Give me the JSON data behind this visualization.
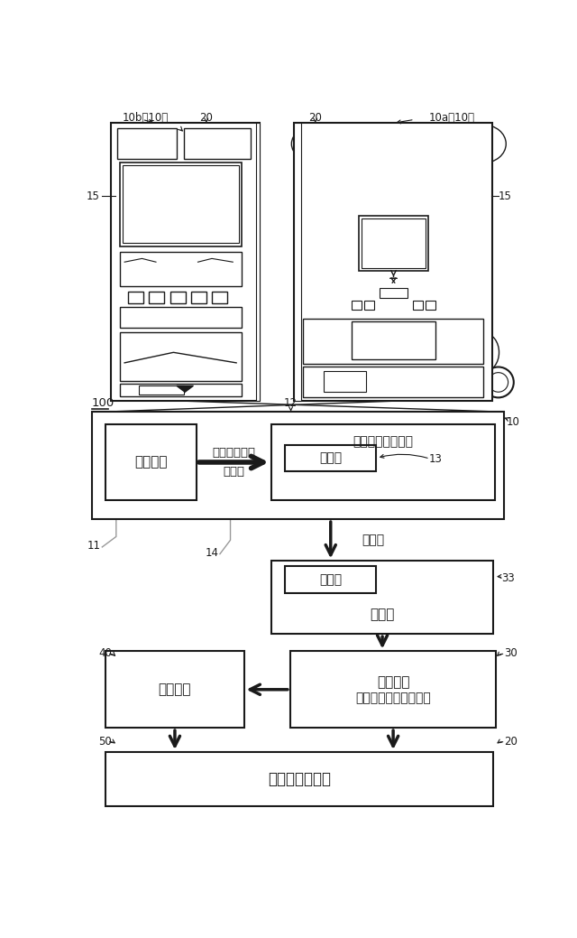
{
  "bg_color": "#ffffff",
  "line_color": "#1a1a1a",
  "gray_line": "#999999",
  "label_fontsize": 8.5,
  "japanese_fontsize": 10,
  "box_texts": {
    "seigyo_kiban": "制御基板",
    "yugiki_setsudan": "遂技機側接続端子",
    "hakkobu": "発光部",
    "jukobu": "受光部",
    "henkanki": "変換器",
    "gaibusochi": "外部装置",
    "gaibusochi2": "（遒技媒体管理装置）",
    "hyoji_sochi": "表示装置",
    "yugijoba": "遒技場管理装置"
  },
  "arrow_texts": {
    "serial_tsushin": "シリアル通信",
    "hikari_shingo": "光信号",
    "shingo_hikari": "信号光"
  },
  "ref_labels": {
    "10b": "10b（10）",
    "20_left": "20",
    "20_right": "20",
    "10a": "10a（10）",
    "15_left": "15",
    "15_right": "15",
    "100": "100",
    "12": "12",
    "10": "10",
    "11": "11",
    "14": "14",
    "13": "13",
    "33": "33",
    "40": "40",
    "30": "30",
    "50": "50",
    "20_bottom": "20"
  }
}
